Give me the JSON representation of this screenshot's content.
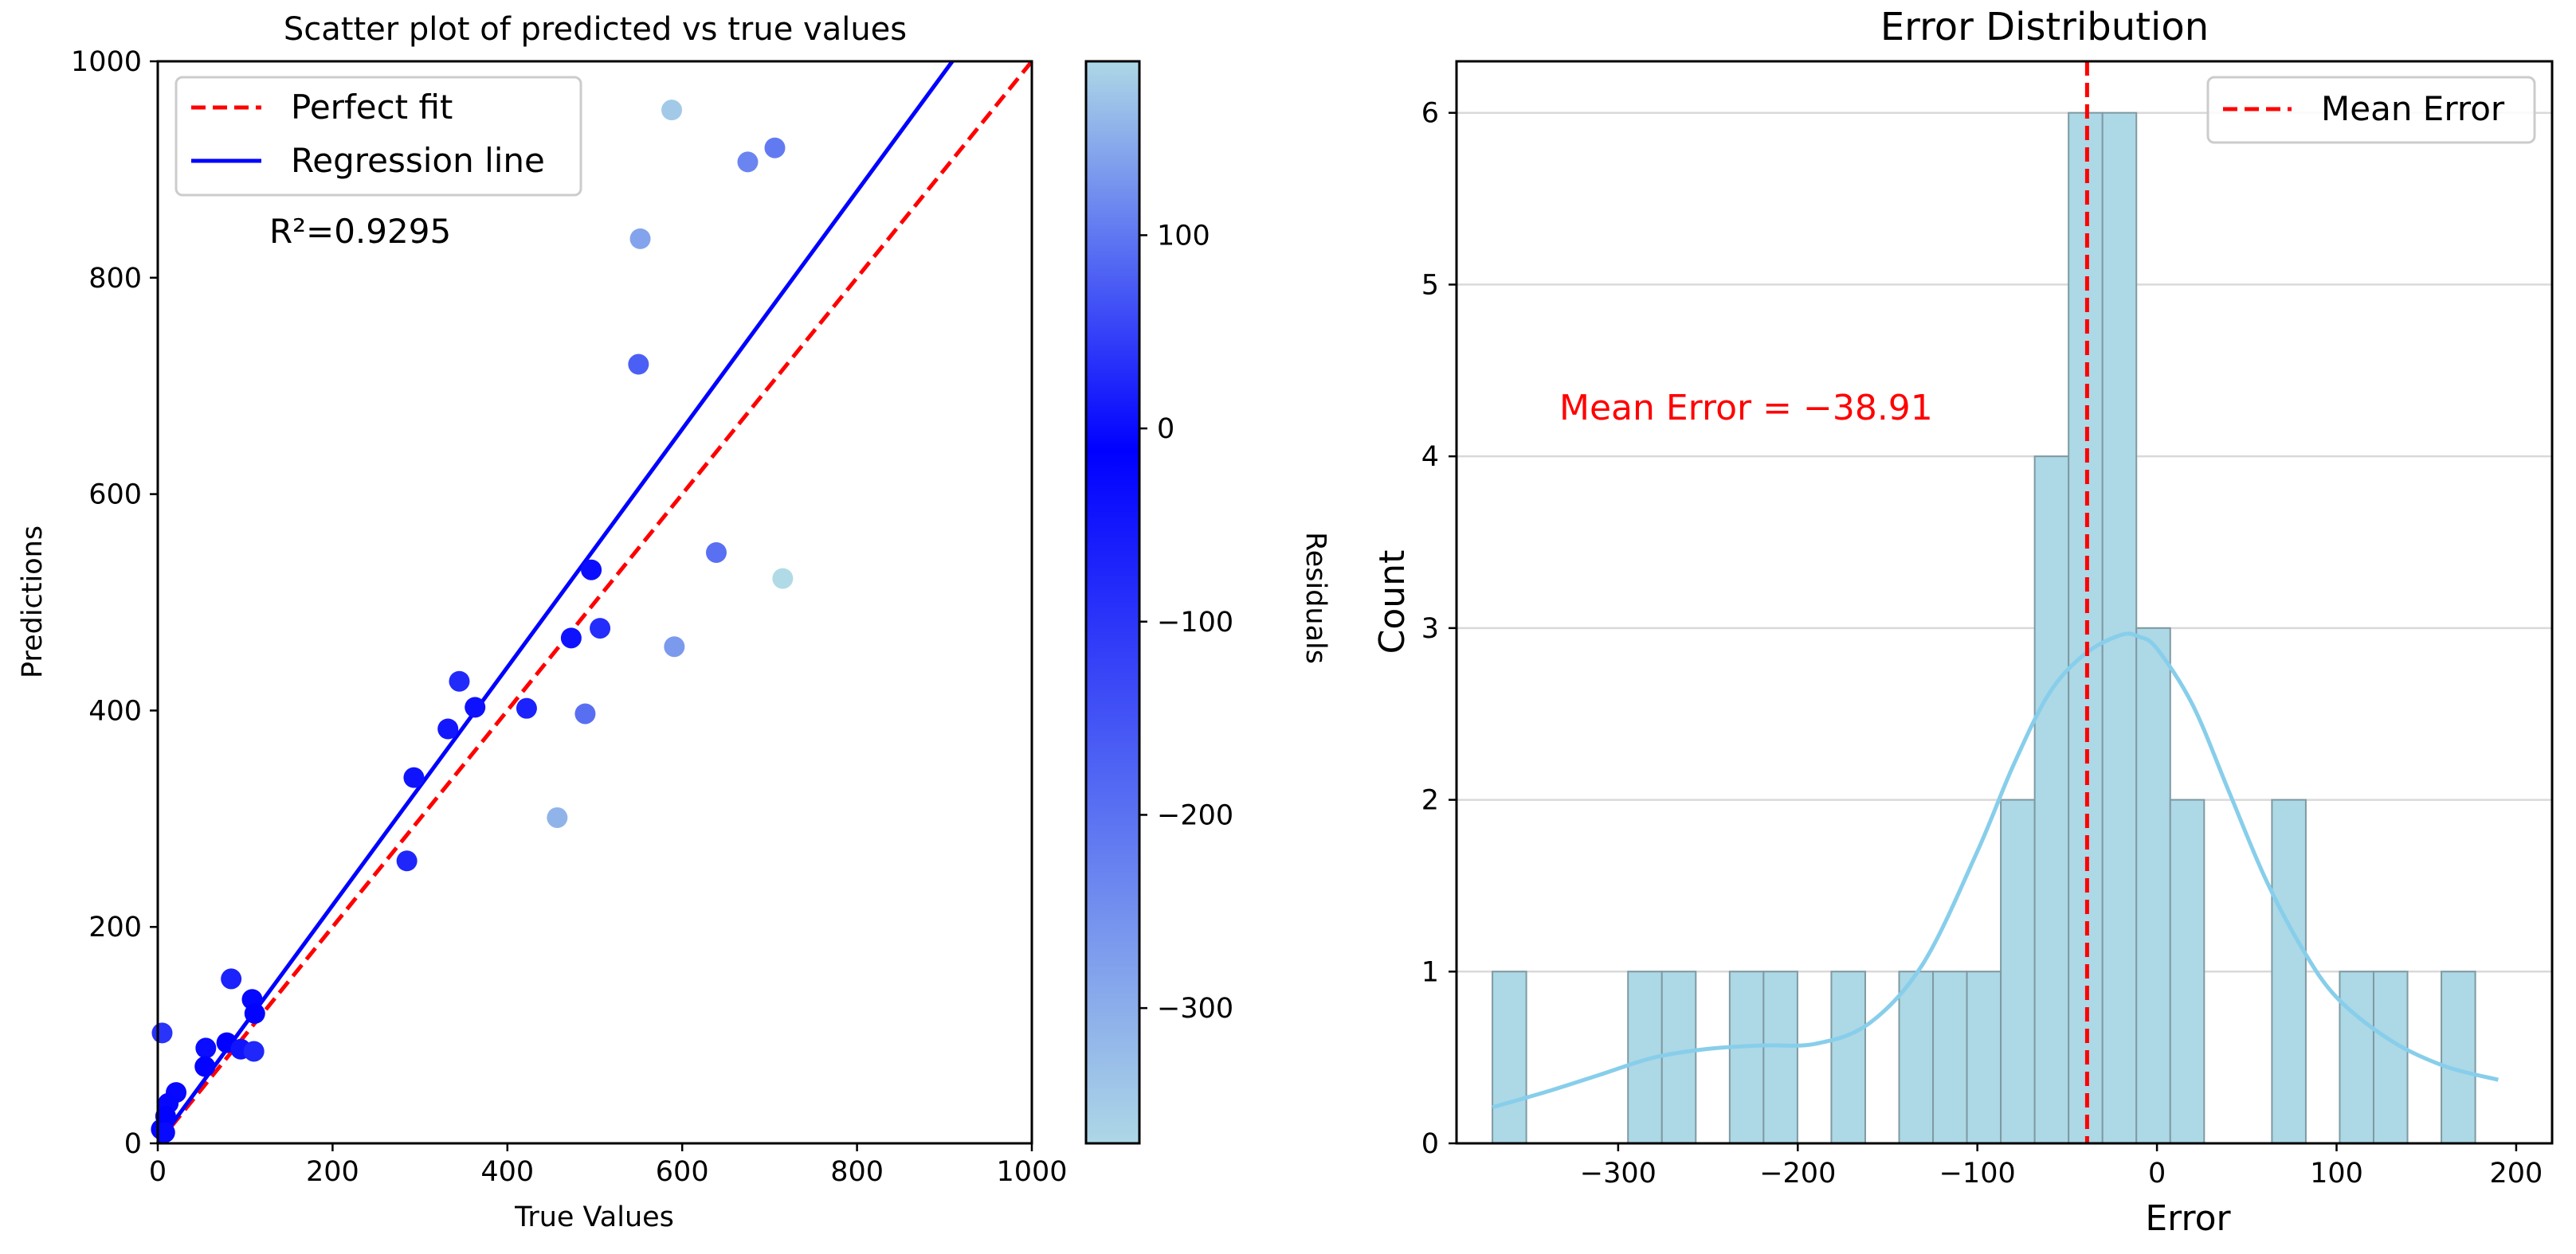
{
  "chart_data": [
    {
      "type": "scatter",
      "title": "Scatter plot of predicted vs true values",
      "xlabel": "True Values",
      "ylabel": "Predictions",
      "xlim": [
        0,
        1000
      ],
      "ylim": [
        0,
        1000
      ],
      "xticks": [
        "0",
        "200",
        "400",
        "600",
        "800",
        "1000"
      ],
      "yticks": [
        "0",
        "200",
        "400",
        "600",
        "800",
        "1000"
      ],
      "legend": {
        "position": "top-left",
        "entries": [
          "Perfect fit",
          "Regression line"
        ]
      },
      "annotation": "R²=0.9295",
      "regression": {
        "slope": 1.1,
        "intercept": 0
      },
      "perfect_fit": {
        "from": [
          0,
          0
        ],
        "to": [
          1000,
          1000
        ]
      },
      "colorbar": {
        "label": "Residuals",
        "range": [
          -370,
          190
        ],
        "ticks": [
          "100",
          "0",
          "−100",
          "−200",
          "−300"
        ],
        "tick_values": [
          100,
          0,
          -100,
          -200,
          -300
        ],
        "colors": [
          "#add8e6",
          "#0000ff",
          "#add8e6"
        ]
      },
      "points": [
        {
          "x": 588,
          "y": 955,
          "residual": 177
        },
        {
          "x": 706,
          "y": 920,
          "residual": -214
        },
        {
          "x": 675,
          "y": 907,
          "residual": -232
        },
        {
          "x": 552,
          "y": 836,
          "residual": -284
        },
        {
          "x": 550,
          "y": 720,
          "residual": -170
        },
        {
          "x": 639,
          "y": 546,
          "residual": 93
        },
        {
          "x": 715,
          "y": 522,
          "residual": 193
        },
        {
          "x": 496,
          "y": 530,
          "residual": -34
        },
        {
          "x": 506,
          "y": 476,
          "residual": 30
        },
        {
          "x": 591,
          "y": 459,
          "residual": 132
        },
        {
          "x": 473,
          "y": 467,
          "residual": 6
        },
        {
          "x": 345,
          "y": 427,
          "residual": -82
        },
        {
          "x": 363,
          "y": 403,
          "residual": -40
        },
        {
          "x": 422,
          "y": 402,
          "residual": 20
        },
        {
          "x": 489,
          "y": 397,
          "residual": 92
        },
        {
          "x": 332,
          "y": 383,
          "residual": -51
        },
        {
          "x": 293,
          "y": 338,
          "residual": -45
        },
        {
          "x": 457,
          "y": 301,
          "residual": 156
        },
        {
          "x": 285,
          "y": 261,
          "residual": 24
        },
        {
          "x": 84,
          "y": 152,
          "residual": -68
        },
        {
          "x": 108,
          "y": 133,
          "residual": -25
        },
        {
          "x": 111,
          "y": 120,
          "residual": -9
        },
        {
          "x": 79,
          "y": 93,
          "residual": -14
        },
        {
          "x": 55,
          "y": 88,
          "residual": -33
        },
        {
          "x": 95,
          "y": 87,
          "residual": 8
        },
        {
          "x": 110,
          "y": 85,
          "residual": 25
        },
        {
          "x": 54,
          "y": 71,
          "residual": -17
        },
        {
          "x": 5,
          "y": 102,
          "residual": -97
        },
        {
          "x": 21,
          "y": 47,
          "residual": -26
        },
        {
          "x": 12,
          "y": 37,
          "residual": -25
        },
        {
          "x": 9,
          "y": 25,
          "residual": -16
        },
        {
          "x": 4,
          "y": 13,
          "residual": -9
        },
        {
          "x": 8,
          "y": 10,
          "residual": -2
        }
      ]
    },
    {
      "type": "bar",
      "title": "Error Distribution",
      "xlabel": "Error",
      "ylabel": "Count",
      "xlim": [
        -390,
        220
      ],
      "ylim": [
        0,
        6.3
      ],
      "xticks": [
        "−300",
        "−200",
        "−100",
        "0",
        "100",
        "200"
      ],
      "xtick_values": [
        -300,
        -200,
        -100,
        0,
        100,
        200
      ],
      "yticks": [
        "0",
        "1",
        "2",
        "3",
        "4",
        "5",
        "6"
      ],
      "grid": "horizontal",
      "bin_start": -370,
      "bin_width": 18.87,
      "counts": [
        1,
        0,
        0,
        0,
        1,
        1,
        0,
        1,
        1,
        0,
        1,
        0,
        1,
        1,
        1,
        2,
        4,
        6,
        6,
        3,
        2,
        0,
        0,
        2,
        0,
        1,
        1,
        0,
        1
      ],
      "bar_color": "#add8e6",
      "kde_color": "#87ceeb",
      "kde": {
        "x": [
          -370,
          -340,
          -310,
          -280,
          -250,
          -220,
          -190,
          -160,
          -130,
          -100,
          -80,
          -60,
          -40,
          -20,
          -10,
          0,
          20,
          40,
          60,
          80,
          100,
          130,
          160,
          190
        ],
        "y": [
          0.21,
          0.3,
          0.4,
          0.5,
          0.55,
          0.57,
          0.58,
          0.7,
          1.05,
          1.7,
          2.2,
          2.62,
          2.85,
          2.96,
          2.95,
          2.88,
          2.55,
          2.05,
          1.55,
          1.15,
          0.85,
          0.6,
          0.45,
          0.37
        ]
      },
      "mean_error": -38.91,
      "mean_annotation": "Mean Error = −38.91",
      "legend": {
        "position": "top-right",
        "entries": [
          "Mean Error"
        ]
      }
    }
  ]
}
